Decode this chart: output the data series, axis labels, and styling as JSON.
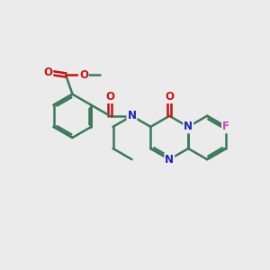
{
  "bg_color": "#ebebeb",
  "bond_color": "#3a7a5a",
  "N_color": "#2020bb",
  "O_color": "#cc1010",
  "F_color": "#cc44cc",
  "bond_width": 1.8,
  "fig_size": [
    3.0,
    3.0
  ],
  "dpi": 100,
  "xlim": [
    0,
    10
  ],
  "ylim": [
    0,
    10
  ]
}
